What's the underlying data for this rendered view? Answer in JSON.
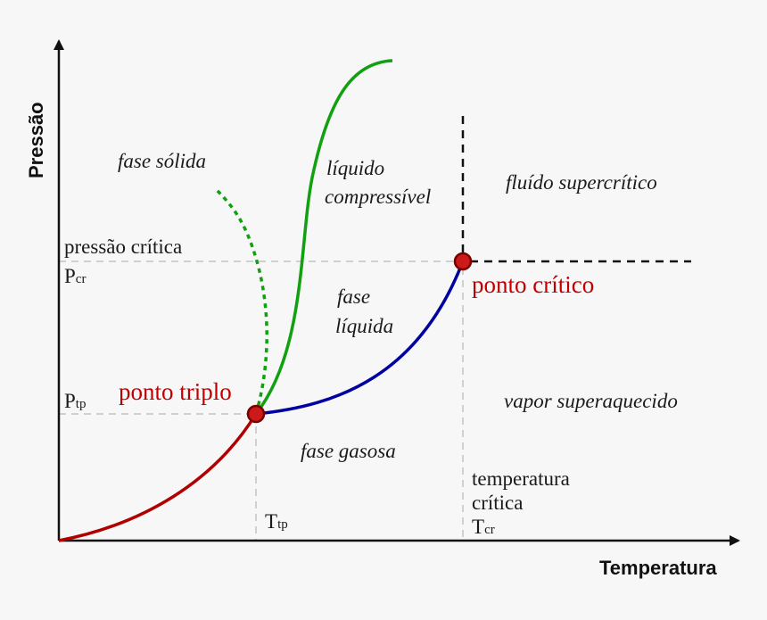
{
  "axes": {
    "x_title": "Temperatura",
    "y_title": "Pressão"
  },
  "regions": {
    "solid": "fase sólida",
    "compressible_liquid_1": "líquido",
    "compressible_liquid_2": "compressível",
    "supercritical": "fluído supercrítico",
    "liquid_1": "fase",
    "liquid_2": "líquida",
    "superheated_vapor": "vapor superaquecido",
    "gas": "fase gasosa"
  },
  "points": {
    "triple": "ponto triplo",
    "critical": "ponto crítico"
  },
  "markers": {
    "p_critical_text": "pressão crítica",
    "p_cr_main": "P",
    "p_cr_sub": "cr",
    "p_tp_main": "P",
    "p_tp_sub": "tp",
    "t_tp_main": "T",
    "t_tp_sub": "tp",
    "t_critical_line1": "temperatura",
    "t_critical_line2": "crítica",
    "t_cr_main": "T",
    "t_cr_sub": "cr"
  },
  "colors": {
    "sublimation_curve": "#b00000",
    "vaporization_curve": "#0000a0",
    "fusion_curve": "#10a010",
    "point_fill": "#cc1a1a",
    "point_stroke": "#7a0000",
    "point_label": "#c00000",
    "guide_lines": "#d0d0d0"
  }
}
